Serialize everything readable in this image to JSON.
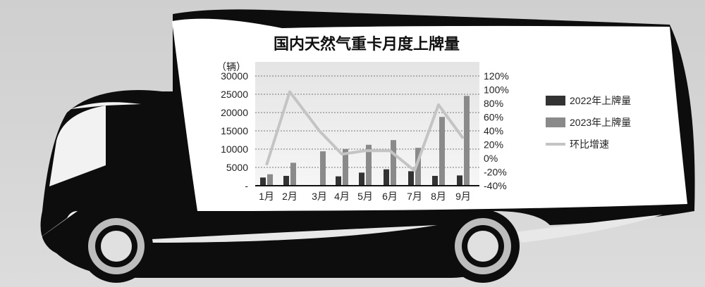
{
  "chart_data": {
    "type": "bar+line",
    "title": "国内天然气重卡月度上牌量",
    "ylabel": "（辆）",
    "categories": [
      "1月",
      "2月",
      "3月",
      "4月",
      "5月",
      "6月",
      "7月",
      "8月",
      "9月"
    ],
    "ylim": [
      0,
      30000
    ],
    "yticks": [
      "30000",
      "25000",
      "20000",
      "15000",
      "10000",
      "5000",
      "-"
    ],
    "y2lim": [
      -40,
      120
    ],
    "y2ticks": [
      "120%",
      "100%",
      "80%",
      "60%",
      "40%",
      "20%",
      "0%",
      "-20%",
      "-40%"
    ],
    "grid": true,
    "legend_position": "right",
    "series": [
      {
        "name": "2022年上牌量",
        "type": "bar",
        "axis": "left",
        "color": "#333333",
        "values": [
          2240,
          2690,
          null,
          2560,
          3580,
          4480,
          3960,
          2690,
          2810
        ]
      },
      {
        "name": "2023年上牌量",
        "type": "bar",
        "axis": "left",
        "color": "#8a8a8a",
        "values": [
          3130,
          6270,
          9400,
          10040,
          11190,
          12470,
          10360,
          18800,
          24560
        ]
      },
      {
        "name": "环比增速",
        "type": "line",
        "axis": "right",
        "unit": "%",
        "color": "#c4c4c4",
        "values": [
          -10,
          97,
          40,
          6,
          11,
          11,
          -18,
          78,
          29
        ]
      }
    ]
  }
}
